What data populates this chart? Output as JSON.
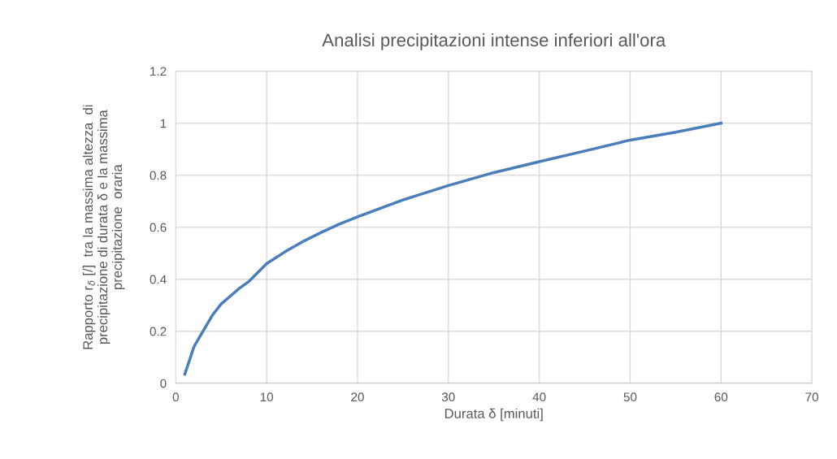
{
  "chart_data": {
    "type": "line",
    "title": "Analisi precipitazioni intense inferiori all'ora",
    "xlabel": "Durata δ [minuti]",
    "ylabel": "Rapporto r$_{δ}$ [/]  tra la massima altezza  di\nprecipitazione di durata δ e la massima\nprecipitazione  oraria",
    "x": [
      1,
      2,
      3,
      4,
      5,
      6,
      7,
      8,
      10,
      12,
      14,
      16,
      18,
      20,
      25,
      30,
      35,
      40,
      45,
      50,
      55,
      60
    ],
    "series": [
      {
        "color": "#4a7ebb",
        "values": [
          0.035,
          0.14,
          0.2,
          0.26,
          0.305,
          0.335,
          0.365,
          0.39,
          0.46,
          0.505,
          0.545,
          0.58,
          0.612,
          0.64,
          0.705,
          0.76,
          0.81,
          0.852,
          0.893,
          0.935,
          0.965,
          1.0
        ]
      }
    ],
    "xlim": [
      0,
      70
    ],
    "xticks": [
      0,
      10,
      20,
      30,
      40,
      50,
      60,
      70
    ],
    "ylim": [
      0,
      1.2
    ],
    "yticks": [
      0,
      0.2,
      0.4,
      0.6,
      0.8,
      1,
      1.2
    ],
    "grid": true,
    "legend": false,
    "marker": "none",
    "line_style": "solid"
  }
}
